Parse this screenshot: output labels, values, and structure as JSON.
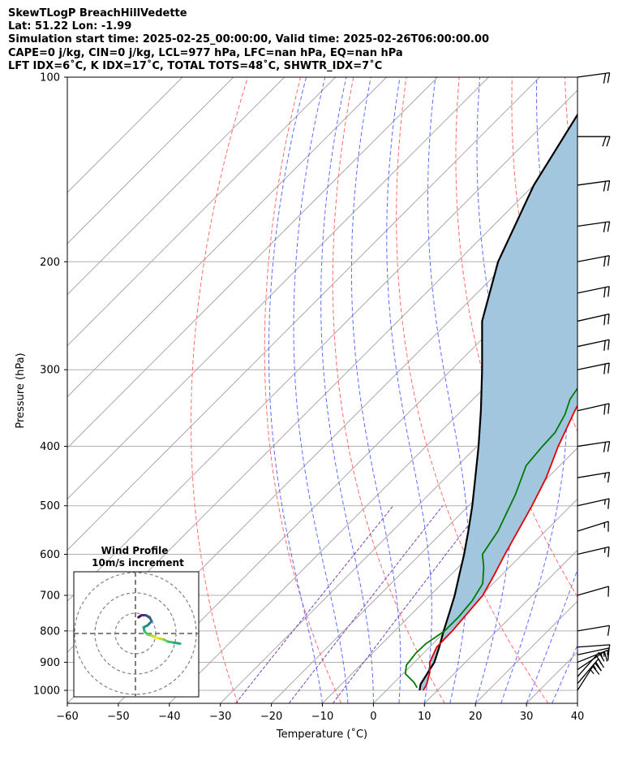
{
  "header": {
    "lines": [
      "SkewTLogP BreachHillVedette",
      "Lat: 51.22   Lon: -1.99",
      "Simulation start time: 2025-02-25_00:00:00, Valid time: 2025-02-26T06:00:00.00",
      "CAPE=0 j/kg, CIN=0 j/kg, LCL=977 hPa, LFC=nan hPa, EQ=nan hPa",
      "LFT IDX=6˚C, K IDX=17˚C, TOTAL TOTS=48˚C, SHWTR_IDX=7˚C"
    ]
  },
  "chart_data": [
    {
      "type": "skew-t log-p",
      "xlabel": "Temperature (˚C)",
      "ylabel": "Pressure (hPa)",
      "xlim": [
        -60,
        40
      ],
      "ylim": [
        1050,
        100
      ],
      "y_scale": "log",
      "grid": true,
      "x_ticks": [
        -60,
        -50,
        -40,
        -30,
        -20,
        -10,
        0,
        10,
        20,
        30,
        40
      ],
      "y_ticks": [
        100,
        200,
        300,
        400,
        500,
        600,
        700,
        800,
        900,
        1000
      ],
      "colors": {
        "temperature": "#e00000",
        "dewpoint": "#007a00",
        "parcel": "#000000",
        "shading": "#a3c6df",
        "dry_adiabats": "#ff6a6a",
        "moist_adiabats": "#5a6cff",
        "mixing_ratio": "#7b3fb8"
      },
      "series": [
        {
          "role": "temperature",
          "points": [
            [
              7.2,
              1000
            ],
            [
              6.8,
              980
            ],
            [
              5,
              935
            ],
            [
              3,
              900
            ],
            [
              1.4,
              850
            ],
            [
              1.3,
              800
            ],
            [
              0.8,
              750
            ],
            [
              0.3,
              700
            ],
            [
              -1.4,
              650
            ],
            [
              -3.4,
              600
            ],
            [
              -7.6,
              500
            ],
            [
              -10.3,
              450
            ],
            [
              -14.1,
              400
            ],
            [
              -17.8,
              350
            ],
            [
              -20,
              320
            ],
            [
              -21,
              300
            ],
            [
              -21.1,
              290
            ],
            [
              -20,
              280
            ],
            [
              -16.7,
              260
            ],
            [
              -12.8,
              242
            ],
            [
              -9,
              228
            ],
            [
              -7.7,
              212
            ],
            [
              -6.5,
              200
            ],
            [
              -5.5,
              188
            ],
            [
              -4,
              178
            ],
            [
              -1.3,
              166
            ],
            [
              3.3,
              152
            ],
            [
              7,
              140
            ],
            [
              8.5,
              130
            ],
            [
              9.5,
              124
            ],
            [
              10.5,
              117
            ],
            [
              13.5,
              110
            ],
            [
              17,
              100
            ]
          ]
        },
        {
          "role": "dewpoint",
          "points": [
            [
              5.5,
              990
            ],
            [
              3.8,
              970
            ],
            [
              0.5,
              940
            ],
            [
              -1,
              910
            ],
            [
              -1.5,
              870
            ],
            [
              -1.4,
              840
            ],
            [
              -0.2,
              800
            ],
            [
              -0.2,
              760
            ],
            [
              -0.7,
              715
            ],
            [
              -2,
              670
            ],
            [
              -5,
              630
            ],
            [
              -7.8,
              600
            ],
            [
              -9.3,
              550
            ],
            [
              -13,
              480
            ],
            [
              -16.6,
              430
            ],
            [
              -17.2,
              400
            ],
            [
              -17.4,
              380
            ],
            [
              -19,
              355
            ],
            [
              -21,
              335
            ],
            [
              -22,
              315
            ],
            [
              -21.5,
              290
            ],
            [
              -22.3,
              270
            ],
            [
              -22,
              252
            ],
            [
              -21,
              228
            ],
            [
              -19.5,
              210
            ],
            [
              -19.8,
              200
            ],
            [
              -21,
              192
            ],
            [
              -22,
              188
            ],
            [
              -19.5,
              175
            ],
            [
              -17,
              164
            ],
            [
              -14.5,
              151
            ],
            [
              -11,
              136
            ],
            [
              -7,
              120
            ],
            [
              -3.5,
              107
            ],
            [
              -2,
              100
            ]
          ]
        },
        {
          "role": "parcel",
          "points": [
            [
              6.5,
              1000
            ],
            [
              5.5,
              977
            ],
            [
              3.9,
              900
            ],
            [
              1.9,
              850
            ],
            [
              -0.4,
              800
            ],
            [
              -2.7,
              750
            ],
            [
              -5.2,
              700
            ],
            [
              -8.2,
              650
            ],
            [
              -11.4,
              600
            ],
            [
              -15.1,
              550
            ],
            [
              -19.3,
              500
            ],
            [
              -24.2,
              450
            ],
            [
              -29.7,
              400
            ],
            [
              -36.2,
              350
            ],
            [
              -44,
              300
            ],
            [
              -53.5,
              250
            ],
            [
              -62,
              200
            ],
            [
              -70,
              150
            ],
            [
              -78,
              100
            ]
          ]
        }
      ],
      "wind_barbs": [
        {
          "p": 1000,
          "u": -16,
          "v": -25
        },
        {
          "p": 975,
          "u": -17,
          "v": -20
        },
        {
          "p": 950,
          "u": -16,
          "v": -18
        },
        {
          "p": 925,
          "u": -15,
          "v": -10
        },
        {
          "p": 900,
          "u": -15,
          "v": -6
        },
        {
          "p": 875,
          "u": -14,
          "v": -3
        },
        {
          "p": 850,
          "u": -14,
          "v": -1
        },
        {
          "p": 800,
          "u": -12,
          "v": -2
        },
        {
          "p": 700,
          "u": -14,
          "v": -4
        },
        {
          "p": 600,
          "u": -17,
          "v": -4
        },
        {
          "p": 550,
          "u": -16,
          "v": -5
        },
        {
          "p": 500,
          "u": -18,
          "v": -4
        },
        {
          "p": 450,
          "u": -18,
          "v": -3
        },
        {
          "p": 400,
          "u": -20,
          "v": -3
        },
        {
          "p": 350,
          "u": -22,
          "v": -5
        },
        {
          "p": 300,
          "u": -24,
          "v": -5
        },
        {
          "p": 275,
          "u": -23,
          "v": -5
        },
        {
          "p": 250,
          "u": -22,
          "v": -5
        },
        {
          "p": 225,
          "u": -24,
          "v": -5
        },
        {
          "p": 200,
          "u": -21,
          "v": -4
        },
        {
          "p": 175,
          "u": -21,
          "v": -3
        },
        {
          "p": 150,
          "u": -22,
          "v": -3
        },
        {
          "p": 125,
          "u": -20,
          "v": 0
        },
        {
          "p": 100,
          "u": -22,
          "v": -3
        }
      ]
    },
    {
      "type": "hodograph",
      "title": "Wind Profile",
      "subtitle": "10m/s increment",
      "ring_increment": 10,
      "points": [
        [
          1.5,
          8
        ],
        [
          3,
          9
        ],
        [
          5,
          9
        ],
        [
          7,
          8
        ],
        [
          8,
          6
        ],
        [
          6,
          4
        ],
        [
          4,
          3
        ],
        [
          4.5,
          1
        ],
        [
          6,
          -0.5
        ],
        [
          8,
          -1
        ],
        [
          10,
          -2
        ],
        [
          12,
          -2.5
        ],
        [
          14,
          -3
        ],
        [
          16,
          -4
        ],
        [
          19,
          -4.5
        ],
        [
          22,
          -5
        ]
      ]
    }
  ]
}
